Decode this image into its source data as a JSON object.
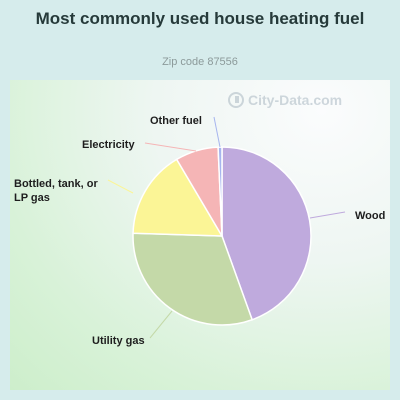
{
  "header": {
    "title": "Most commonly used house heating fuel",
    "subtitle": "Zip code 87556"
  },
  "watermark": {
    "text": "City-Data.com",
    "icon": "city-data-logo-icon"
  },
  "chart_data": {
    "type": "pie",
    "title": "Most commonly used house heating fuel",
    "subtitle": "Zip code 87556",
    "units": "percent",
    "slices": [
      {
        "label": "Wood",
        "value": 44.5,
        "color": "#bfaadd"
      },
      {
        "label": "Utility gas",
        "value": 31.0,
        "color": "#c4d9a8"
      },
      {
        "label": "Bottled, tank, or LP gas",
        "value": 16.0,
        "color": "#fbf596"
      },
      {
        "label": "Electricity",
        "value": 7.8,
        "color": "#f5b5b6"
      },
      {
        "label": "Other fuel",
        "value": 0.7,
        "color": "#a6b5ee"
      }
    ]
  }
}
